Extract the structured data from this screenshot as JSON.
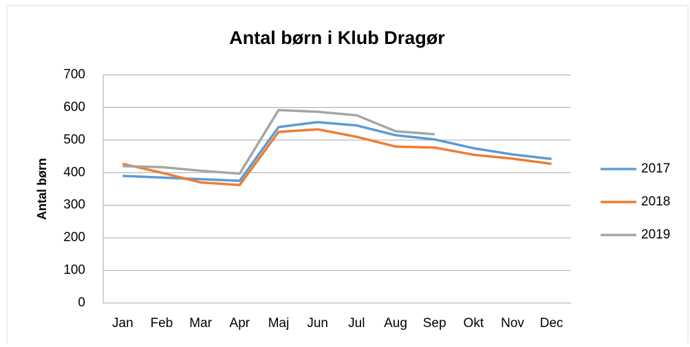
{
  "chart_data": {
    "type": "line",
    "title": "Antal børn i Klub Dragør",
    "y_label": "Antal børn",
    "categories": [
      "Jan",
      "Feb",
      "Mar",
      "Apr",
      "Maj",
      "Jun",
      "Jul",
      "Aug",
      "Sep",
      "Okt",
      "Nov",
      "Dec"
    ],
    "series": [
      {
        "name": "2017",
        "color": "#5b9bd5",
        "values": [
          390,
          385,
          380,
          375,
          540,
          555,
          545,
          515,
          502,
          475,
          456,
          442
        ]
      },
      {
        "name": "2018",
        "color": "#ed7d31",
        "values": [
          427,
          400,
          370,
          362,
          525,
          533,
          510,
          480,
          477,
          455,
          443,
          427
        ]
      },
      {
        "name": "2019",
        "color": "#a5a5a5",
        "values": [
          420,
          417,
          406,
          397,
          592,
          587,
          576,
          527,
          518,
          null,
          null,
          null
        ]
      }
    ],
    "ylim": [
      0,
      700
    ],
    "yticks": [
      0,
      100,
      200,
      300,
      400,
      500,
      600,
      700
    ],
    "grid": true,
    "legend": "right"
  }
}
